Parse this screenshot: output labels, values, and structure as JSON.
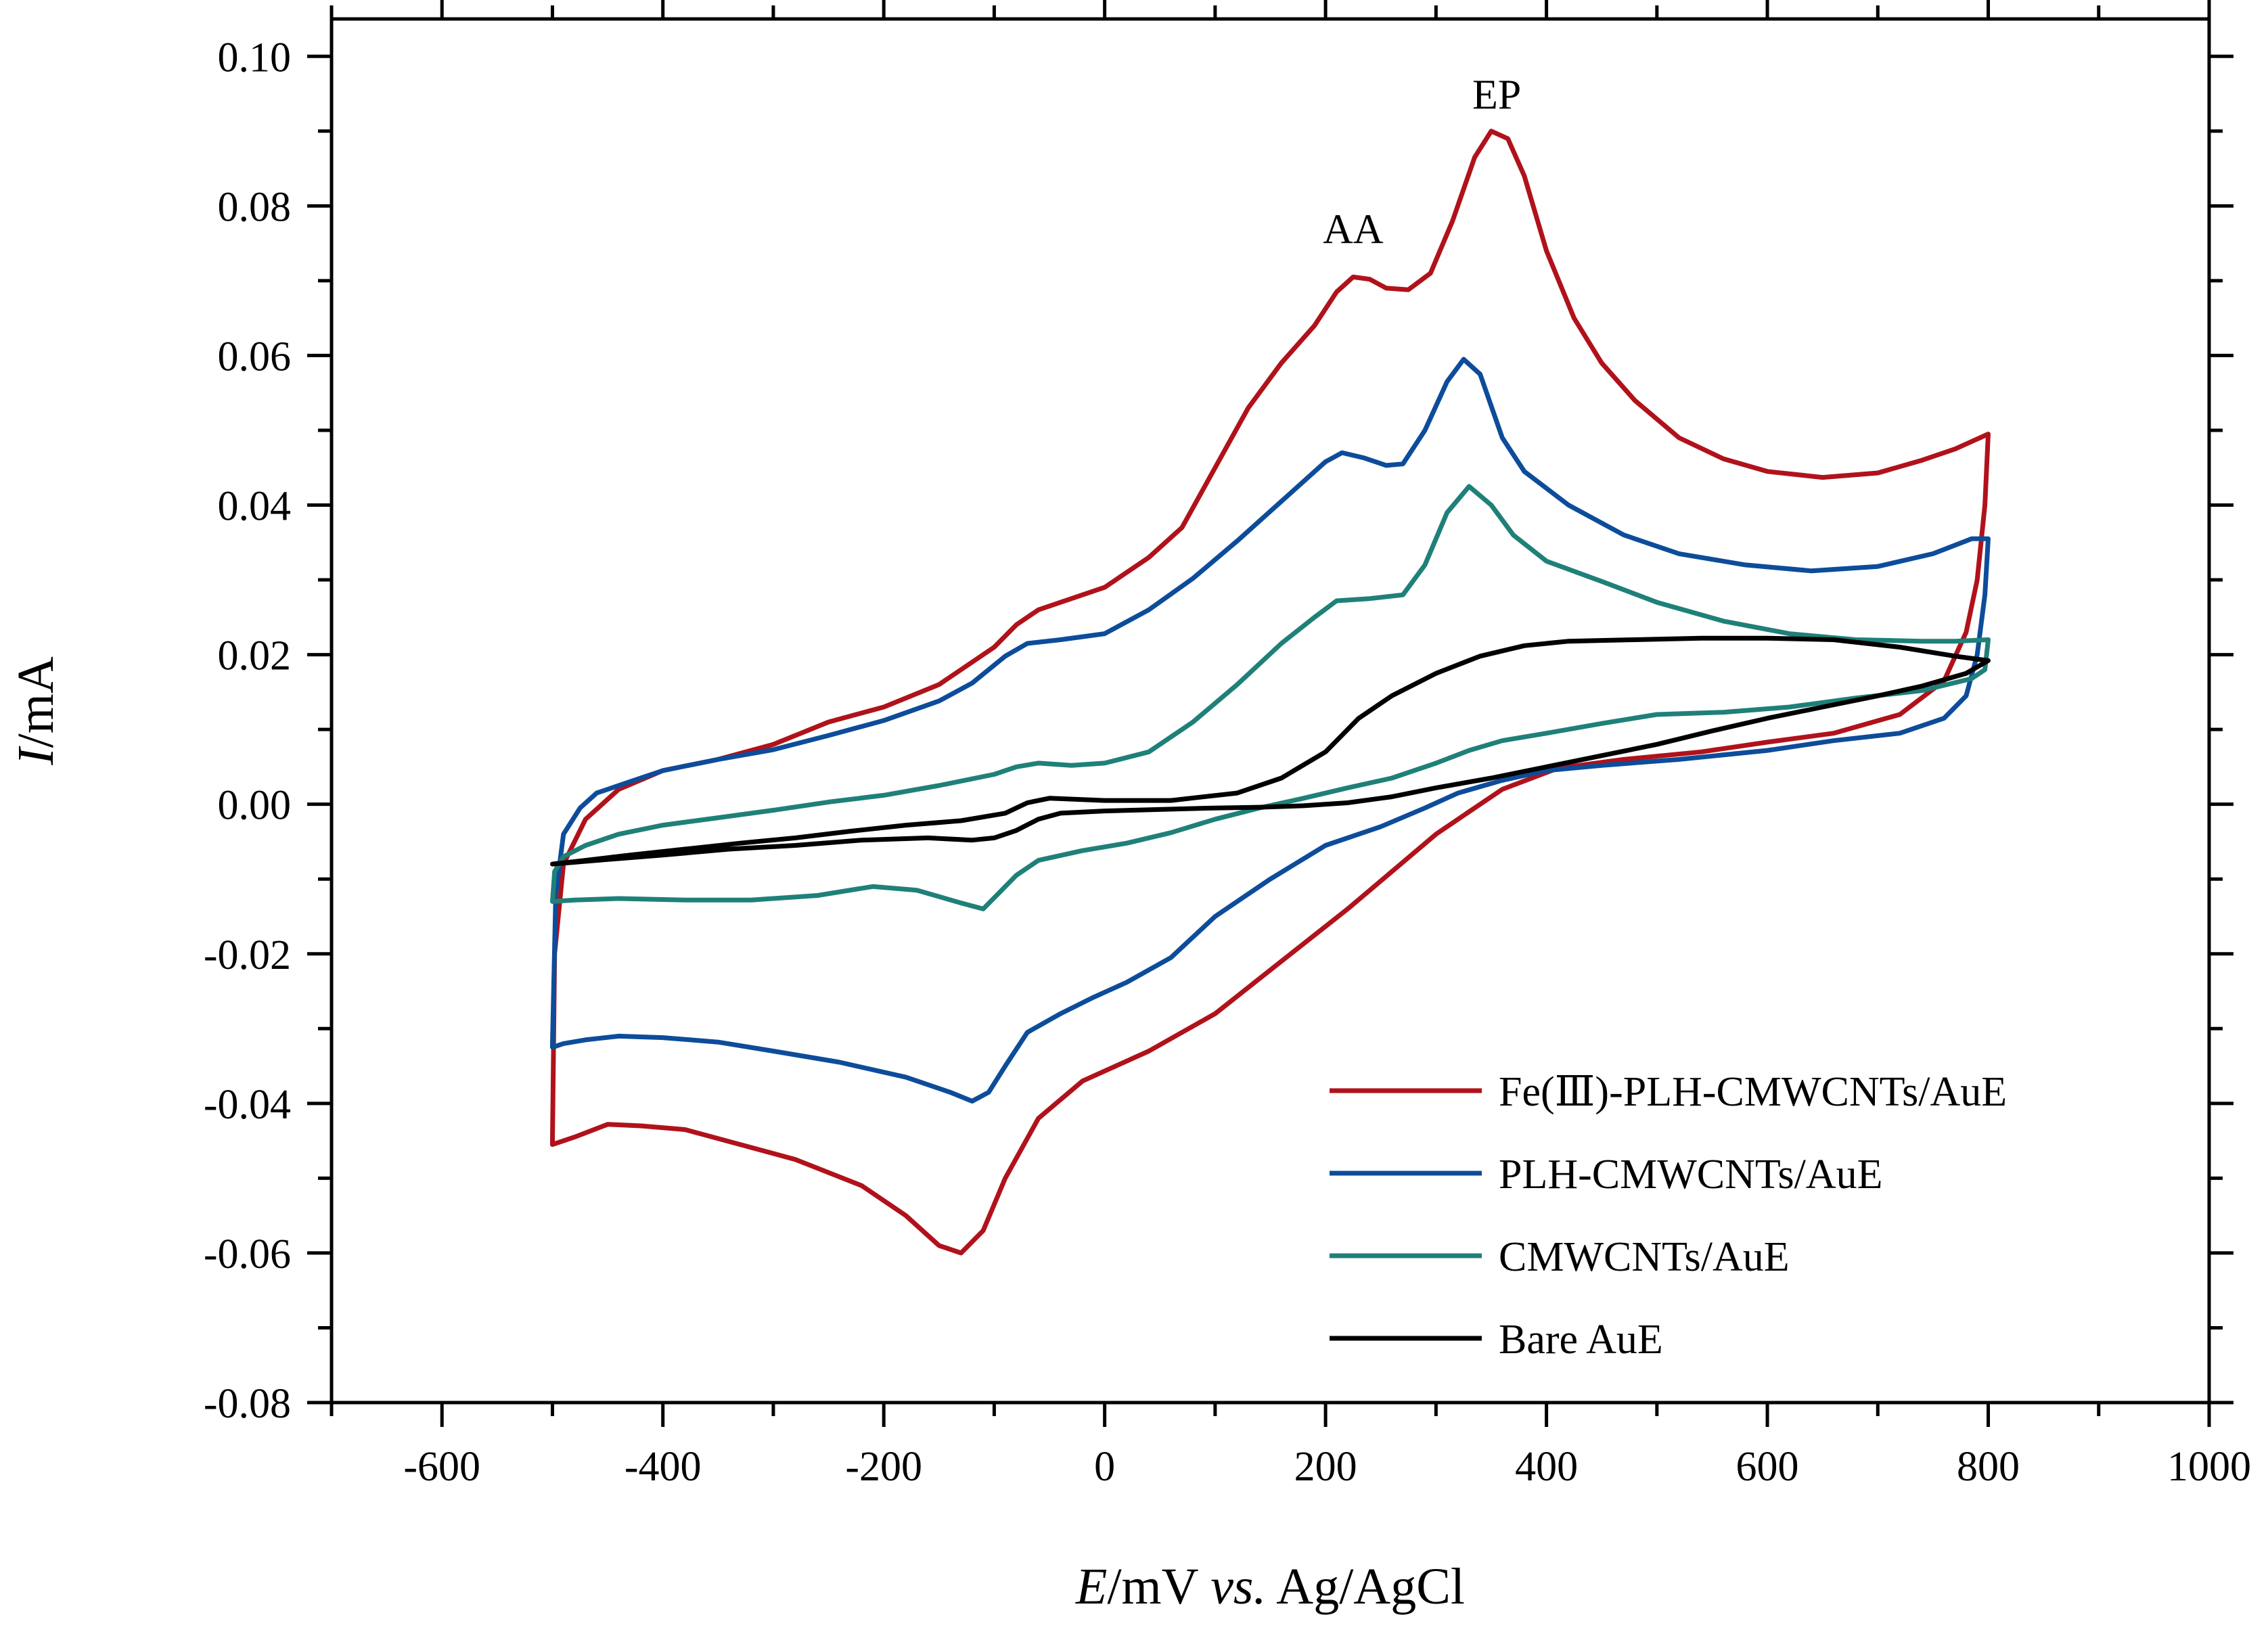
{
  "chart_data": {
    "type": "line",
    "title": "",
    "xlabel": {
      "italic": "E",
      "unit": "/mV ",
      "vs": "vs.",
      "ref": " Ag/AgCl"
    },
    "ylabel": {
      "italic": "I",
      "unit": "/mA"
    },
    "xlim": [
      -700,
      1000
    ],
    "ylim": [
      -0.08,
      0.105
    ],
    "x_ticks": [
      -600,
      -400,
      -200,
      0,
      200,
      400,
      600,
      800,
      1000
    ],
    "x_tick_labels": [
      "-600",
      "-400",
      "-200",
      "0",
      "200",
      "400",
      "600",
      "800",
      "1000"
    ],
    "y_ticks": [
      -0.08,
      -0.06,
      -0.04,
      -0.02,
      0.0,
      0.02,
      0.04,
      0.06,
      0.08,
      0.1
    ],
    "y_tick_labels": [
      "-0.08",
      "-0.06",
      "-0.04",
      "-0.02",
      "0.00",
      "0.02",
      "0.04",
      "0.06",
      "0.08",
      "0.10"
    ],
    "grid": false,
    "legend_position": "bottom-right",
    "annotations": [
      {
        "text": "AA",
        "x": 225,
        "y": 0.075
      },
      {
        "text": "EP",
        "x": 355,
        "y": 0.093
      }
    ],
    "series": [
      {
        "name": "Fe(Ⅲ)-PLH-CMWCNTs/AuE",
        "color": "#b0121b",
        "points": [
          [
            -500,
            -0.045
          ],
          [
            -498,
            -0.02
          ],
          [
            -490,
            -0.008
          ],
          [
            -470,
            -0.002
          ],
          [
            -440,
            0.002
          ],
          [
            -400,
            0.0045
          ],
          [
            -350,
            0.006
          ],
          [
            -300,
            0.008
          ],
          [
            -250,
            0.011
          ],
          [
            -200,
            0.013
          ],
          [
            -150,
            0.016
          ],
          [
            -100,
            0.021
          ],
          [
            -80,
            0.024
          ],
          [
            -60,
            0.026
          ],
          [
            -40,
            0.027
          ],
          [
            0,
            0.029
          ],
          [
            40,
            0.033
          ],
          [
            70,
            0.037
          ],
          [
            100,
            0.045
          ],
          [
            130,
            0.053
          ],
          [
            160,
            0.059
          ],
          [
            190,
            0.064
          ],
          [
            210,
            0.0685
          ],
          [
            225,
            0.0705
          ],
          [
            240,
            0.0702
          ],
          [
            255,
            0.069
          ],
          [
            275,
            0.0688
          ],
          [
            295,
            0.071
          ],
          [
            315,
            0.078
          ],
          [
            335,
            0.0865
          ],
          [
            350,
            0.09
          ],
          [
            365,
            0.089
          ],
          [
            380,
            0.084
          ],
          [
            400,
            0.074
          ],
          [
            425,
            0.065
          ],
          [
            450,
            0.059
          ],
          [
            480,
            0.054
          ],
          [
            520,
            0.049
          ],
          [
            560,
            0.0462
          ],
          [
            600,
            0.0445
          ],
          [
            650,
            0.0437
          ],
          [
            700,
            0.0443
          ],
          [
            740,
            0.046
          ],
          [
            770,
            0.0475
          ],
          [
            800,
            0.0495
          ],
          [
            797,
            0.04
          ],
          [
            790,
            0.03
          ],
          [
            780,
            0.023
          ],
          [
            760,
            0.0165
          ],
          [
            720,
            0.012
          ],
          [
            660,
            0.0095
          ],
          [
            600,
            0.0083
          ],
          [
            540,
            0.007
          ],
          [
            470,
            0.006
          ],
          [
            410,
            0.0048
          ],
          [
            360,
            0.002
          ],
          [
            330,
            -0.001
          ],
          [
            300,
            -0.004
          ],
          [
            260,
            -0.009
          ],
          [
            220,
            -0.014
          ],
          [
            160,
            -0.021
          ],
          [
            100,
            -0.028
          ],
          [
            40,
            -0.033
          ],
          [
            -20,
            -0.037
          ],
          [
            -60,
            -0.042
          ],
          [
            -90,
            -0.05
          ],
          [
            -110,
            -0.057
          ],
          [
            -130,
            -0.06
          ],
          [
            -150,
            -0.059
          ],
          [
            -180,
            -0.055
          ],
          [
            -220,
            -0.051
          ],
          [
            -280,
            -0.0475
          ],
          [
            -330,
            -0.0455
          ],
          [
            -380,
            -0.0435
          ],
          [
            -420,
            -0.043
          ],
          [
            -450,
            -0.0428
          ],
          [
            -480,
            -0.0445
          ],
          [
            -500,
            -0.0455
          ]
        ]
      },
      {
        "name": "PLH-CMWCNTs/AuE",
        "color": "#0d4c9a",
        "points": [
          [
            -500,
            -0.032
          ],
          [
            -497,
            -0.012
          ],
          [
            -490,
            -0.004
          ],
          [
            -475,
            -0.0005
          ],
          [
            -460,
            0.0015
          ],
          [
            -430,
            0.003
          ],
          [
            -400,
            0.0045
          ],
          [
            -350,
            0.006
          ],
          [
            -300,
            0.0073
          ],
          [
            -250,
            0.0092
          ],
          [
            -200,
            0.0112
          ],
          [
            -150,
            0.0138
          ],
          [
            -120,
            0.0162
          ],
          [
            -90,
            0.0198
          ],
          [
            -70,
            0.0215
          ],
          [
            -40,
            0.022
          ],
          [
            0,
            0.0228
          ],
          [
            40,
            0.026
          ],
          [
            80,
            0.0302
          ],
          [
            120,
            0.0352
          ],
          [
            160,
            0.0405
          ],
          [
            200,
            0.0458
          ],
          [
            215,
            0.047
          ],
          [
            235,
            0.0463
          ],
          [
            255,
            0.0453
          ],
          [
            270,
            0.0455
          ],
          [
            290,
            0.05
          ],
          [
            310,
            0.0565
          ],
          [
            325,
            0.0595
          ],
          [
            340,
            0.0575
          ],
          [
            360,
            0.049
          ],
          [
            380,
            0.0445
          ],
          [
            420,
            0.04
          ],
          [
            470,
            0.036
          ],
          [
            520,
            0.0335
          ],
          [
            580,
            0.032
          ],
          [
            640,
            0.0312
          ],
          [
            700,
            0.0318
          ],
          [
            750,
            0.0335
          ],
          [
            785,
            0.0355
          ],
          [
            800,
            0.0355
          ],
          [
            797,
            0.028
          ],
          [
            790,
            0.02
          ],
          [
            780,
            0.0145
          ],
          [
            760,
            0.0115
          ],
          [
            720,
            0.0095
          ],
          [
            660,
            0.0085
          ],
          [
            600,
            0.0072
          ],
          [
            520,
            0.006
          ],
          [
            450,
            0.0052
          ],
          [
            400,
            0.0045
          ],
          [
            360,
            0.0032
          ],
          [
            320,
            0.0015
          ],
          [
            290,
            -0.0005
          ],
          [
            250,
            -0.003
          ],
          [
            200,
            -0.0055
          ],
          [
            150,
            -0.01
          ],
          [
            100,
            -0.015
          ],
          [
            60,
            -0.0205
          ],
          [
            20,
            -0.0238
          ],
          [
            -10,
            -0.0258
          ],
          [
            -40,
            -0.028
          ],
          [
            -70,
            -0.0305
          ],
          [
            -90,
            -0.035
          ],
          [
            -105,
            -0.0385
          ],
          [
            -120,
            -0.0397
          ],
          [
            -140,
            -0.0385
          ],
          [
            -180,
            -0.0365
          ],
          [
            -240,
            -0.0345
          ],
          [
            -300,
            -0.033
          ],
          [
            -350,
            -0.0318
          ],
          [
            -400,
            -0.0312
          ],
          [
            -440,
            -0.031
          ],
          [
            -470,
            -0.0315
          ],
          [
            -490,
            -0.032
          ],
          [
            -500,
            -0.0325
          ]
        ]
      },
      {
        "name": "CMWCNTs/AuE",
        "color": "#1f8079",
        "points": [
          [
            -500,
            -0.013
          ],
          [
            -498,
            -0.009
          ],
          [
            -490,
            -0.007
          ],
          [
            -470,
            -0.0055
          ],
          [
            -440,
            -0.004
          ],
          [
            -400,
            -0.0028
          ],
          [
            -350,
            -0.0018
          ],
          [
            -300,
            -0.0008
          ],
          [
            -250,
            0.0003
          ],
          [
            -200,
            0.0012
          ],
          [
            -150,
            0.0025
          ],
          [
            -100,
            0.004
          ],
          [
            -80,
            0.005
          ],
          [
            -60,
            0.0055
          ],
          [
            -30,
            0.0052
          ],
          [
            0,
            0.0055
          ],
          [
            40,
            0.007
          ],
          [
            80,
            0.011
          ],
          [
            120,
            0.016
          ],
          [
            160,
            0.0215
          ],
          [
            190,
            0.025
          ],
          [
            210,
            0.0272
          ],
          [
            240,
            0.0275
          ],
          [
            270,
            0.028
          ],
          [
            290,
            0.032
          ],
          [
            310,
            0.039
          ],
          [
            330,
            0.0425
          ],
          [
            350,
            0.04
          ],
          [
            370,
            0.036
          ],
          [
            400,
            0.0325
          ],
          [
            450,
            0.0298
          ],
          [
            500,
            0.027
          ],
          [
            560,
            0.0245
          ],
          [
            620,
            0.0228
          ],
          [
            680,
            0.022
          ],
          [
            740,
            0.0218
          ],
          [
            770,
            0.0218
          ],
          [
            800,
            0.022
          ],
          [
            797,
            0.018
          ],
          [
            785,
            0.0168
          ],
          [
            740,
            0.0152
          ],
          [
            680,
            0.0142
          ],
          [
            620,
            0.013
          ],
          [
            560,
            0.0123
          ],
          [
            500,
            0.012
          ],
          [
            450,
            0.0108
          ],
          [
            400,
            0.0095
          ],
          [
            360,
            0.0085
          ],
          [
            330,
            0.0072
          ],
          [
            300,
            0.0055
          ],
          [
            260,
            0.0035
          ],
          [
            220,
            0.0022
          ],
          [
            180,
            0.0008
          ],
          [
            140,
            -0.0005
          ],
          [
            100,
            -0.002
          ],
          [
            60,
            -0.0038
          ],
          [
            20,
            -0.0052
          ],
          [
            -20,
            -0.0062
          ],
          [
            -60,
            -0.0075
          ],
          [
            -80,
            -0.0095
          ],
          [
            -100,
            -0.0125
          ],
          [
            -110,
            -0.014
          ],
          [
            -130,
            -0.0132
          ],
          [
            -170,
            -0.0115
          ],
          [
            -210,
            -0.011
          ],
          [
            -260,
            -0.0122
          ],
          [
            -320,
            -0.0128
          ],
          [
            -380,
            -0.0128
          ],
          [
            -440,
            -0.0126
          ],
          [
            -480,
            -0.0128
          ],
          [
            -500,
            -0.013
          ]
        ]
      },
      {
        "name": "Bare AuE",
        "color": "#000000",
        "points": [
          [
            -500,
            -0.008
          ],
          [
            -470,
            -0.0075
          ],
          [
            -430,
            -0.0068
          ],
          [
            -380,
            -0.006
          ],
          [
            -330,
            -0.0052
          ],
          [
            -280,
            -0.0045
          ],
          [
            -230,
            -0.0036
          ],
          [
            -180,
            -0.0028
          ],
          [
            -130,
            -0.0022
          ],
          [
            -90,
            -0.0012
          ],
          [
            -70,
            0.0002
          ],
          [
            -50,
            0.0008
          ],
          [
            0,
            0.0005
          ],
          [
            60,
            0.0005
          ],
          [
            120,
            0.0015
          ],
          [
            160,
            0.0035
          ],
          [
            200,
            0.007
          ],
          [
            230,
            0.0115
          ],
          [
            260,
            0.0145
          ],
          [
            300,
            0.0175
          ],
          [
            340,
            0.0198
          ],
          [
            380,
            0.0212
          ],
          [
            420,
            0.0218
          ],
          [
            480,
            0.022
          ],
          [
            540,
            0.0222
          ],
          [
            600,
            0.0222
          ],
          [
            660,
            0.022
          ],
          [
            720,
            0.021
          ],
          [
            770,
            0.0198
          ],
          [
            800,
            0.0192
          ],
          [
            780,
            0.0175
          ],
          [
            740,
            0.0158
          ],
          [
            700,
            0.0145
          ],
          [
            650,
            0.013
          ],
          [
            600,
            0.0115
          ],
          [
            550,
            0.0098
          ],
          [
            500,
            0.008
          ],
          [
            450,
            0.0065
          ],
          [
            400,
            0.005
          ],
          [
            350,
            0.0035
          ],
          [
            300,
            0.0022
          ],
          [
            260,
            0.001
          ],
          [
            220,
            0.0002
          ],
          [
            180,
            -0.0002
          ],
          [
            140,
            -0.0004
          ],
          [
            100,
            -0.0005
          ],
          [
            50,
            -0.0007
          ],
          [
            0,
            -0.0009
          ],
          [
            -40,
            -0.0012
          ],
          [
            -60,
            -0.002
          ],
          [
            -80,
            -0.0035
          ],
          [
            -100,
            -0.0045
          ],
          [
            -120,
            -0.0048
          ],
          [
            -160,
            -0.0045
          ],
          [
            -220,
            -0.0048
          ],
          [
            -280,
            -0.0055
          ],
          [
            -340,
            -0.006
          ],
          [
            -400,
            -0.0068
          ],
          [
            -460,
            -0.0075
          ],
          [
            -500,
            -0.008
          ]
        ]
      }
    ]
  }
}
